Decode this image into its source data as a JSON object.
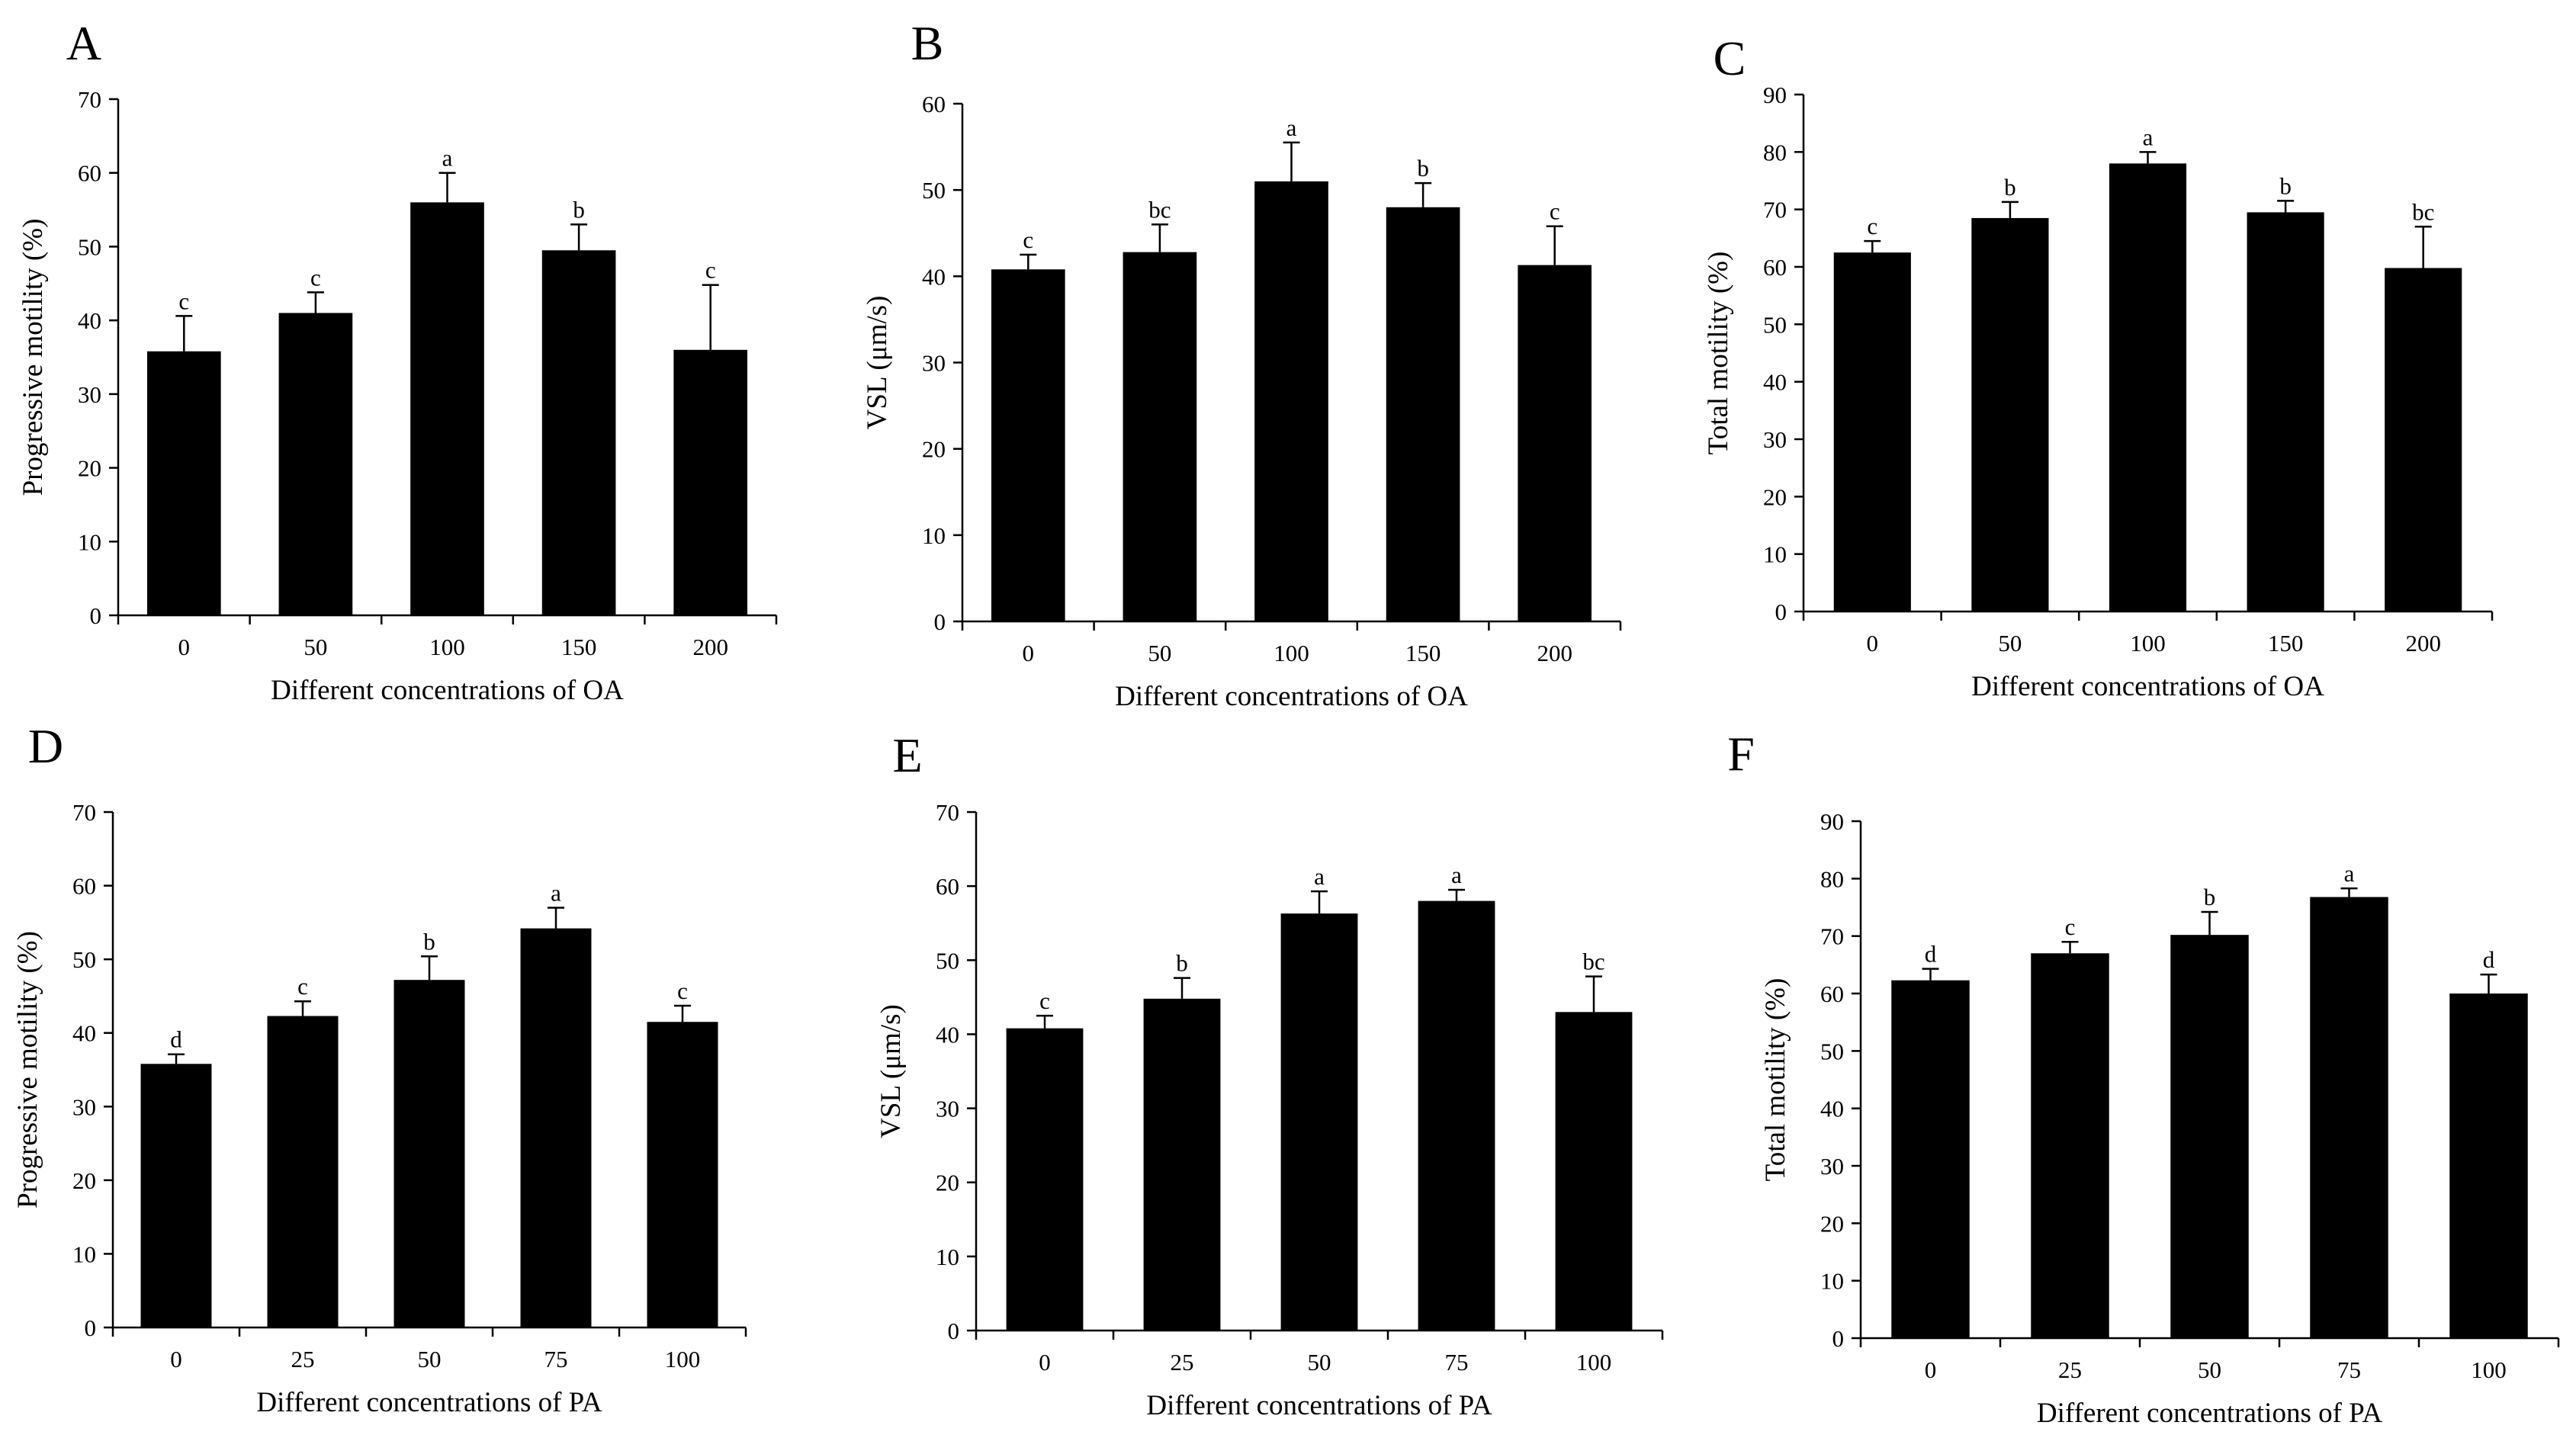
{
  "colors": {
    "bar": "#000000",
    "axis": "#000000",
    "background": "#ffffff"
  },
  "chart_data": [
    {
      "panel": "A",
      "type": "bar",
      "categories": [
        "0",
        "50",
        "100",
        "150",
        "200"
      ],
      "values": [
        35.8,
        41.0,
        56.0,
        49.5,
        36.0
      ],
      "errors": [
        4.8,
        2.8,
        4.0,
        3.5,
        8.8
      ],
      "sig_letters": [
        "c",
        "c",
        "a",
        "b",
        "c"
      ],
      "xlabel": "Different concentrations of OA",
      "ylabel": "Progressive motility (%)",
      "ylim": [
        0,
        70
      ],
      "yticks": [
        0,
        10,
        20,
        30,
        40,
        50,
        60,
        70
      ]
    },
    {
      "panel": "B",
      "type": "bar",
      "categories": [
        "0",
        "50",
        "100",
        "150",
        "200"
      ],
      "values": [
        40.8,
        42.8,
        51.0,
        48.0,
        41.3
      ],
      "errors": [
        1.7,
        3.2,
        4.5,
        2.8,
        4.5
      ],
      "sig_letters": [
        "c",
        "bc",
        "a",
        "b",
        "c"
      ],
      "xlabel": "Different concentrations of OA",
      "ylabel": "VSL (μm/s)",
      "ylim": [
        0,
        60
      ],
      "yticks": [
        0,
        10,
        20,
        30,
        40,
        50,
        60
      ]
    },
    {
      "panel": "C",
      "type": "bar",
      "categories": [
        "0",
        "50",
        "100",
        "150",
        "200"
      ],
      "values": [
        62.5,
        68.5,
        78.0,
        69.5,
        59.8
      ],
      "errors": [
        2.0,
        2.8,
        2.0,
        2.0,
        7.2
      ],
      "sig_letters": [
        "c",
        "b",
        "a",
        "b",
        "bc"
      ],
      "xlabel": "Different concentrations of OA",
      "ylabel": "Total motility (%)",
      "ylim": [
        0,
        90
      ],
      "yticks": [
        0,
        10,
        20,
        30,
        40,
        50,
        60,
        70,
        80,
        90
      ]
    },
    {
      "panel": "D",
      "type": "bar",
      "categories": [
        "0",
        "25",
        "50",
        "75",
        "100"
      ],
      "values": [
        35.8,
        42.3,
        47.2,
        54.2,
        41.5
      ],
      "errors": [
        1.3,
        2.0,
        3.2,
        2.8,
        2.2
      ],
      "sig_letters": [
        "d",
        "c",
        "b",
        "a",
        "c"
      ],
      "xlabel": "Different concentrations of PA",
      "ylabel": "Progressive motility (%)",
      "ylim": [
        0,
        70
      ],
      "yticks": [
        0,
        10,
        20,
        30,
        40,
        50,
        60,
        70
      ]
    },
    {
      "panel": "E",
      "type": "bar",
      "categories": [
        "0",
        "25",
        "50",
        "75",
        "100"
      ],
      "values": [
        40.8,
        44.8,
        56.3,
        58.0,
        43.0
      ],
      "errors": [
        1.7,
        2.8,
        3.0,
        1.5,
        4.8
      ],
      "sig_letters": [
        "c",
        "b",
        "a",
        "a",
        "bc"
      ],
      "xlabel": "Different concentrations of PA",
      "ylabel": "VSL (μm/s)",
      "ylim": [
        0,
        70
      ],
      "yticks": [
        0,
        10,
        20,
        30,
        40,
        50,
        60,
        70
      ]
    },
    {
      "panel": "F",
      "type": "bar",
      "categories": [
        "0",
        "25",
        "50",
        "75",
        "100"
      ],
      "values": [
        62.3,
        67.0,
        70.2,
        76.8,
        60.0
      ],
      "errors": [
        2.0,
        2.0,
        4.0,
        1.5,
        3.3
      ],
      "sig_letters": [
        "d",
        "c",
        "b",
        "a",
        "d"
      ],
      "xlabel": "Different concentrations of PA",
      "ylabel": "Total motility (%)",
      "ylim": [
        0,
        90
      ],
      "yticks": [
        0,
        10,
        20,
        30,
        40,
        50,
        60,
        70,
        80,
        90
      ]
    }
  ]
}
